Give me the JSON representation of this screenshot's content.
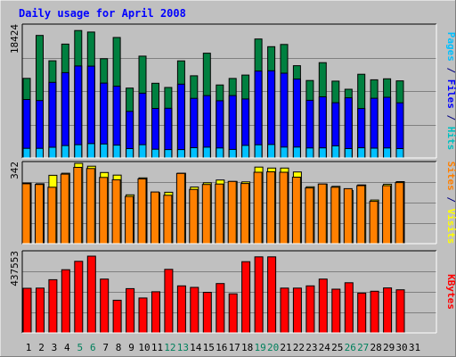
{
  "chart_data": {
    "type": "bar",
    "title": "Daily usage for April 2008",
    "categories": [
      "1",
      "2",
      "3",
      "4",
      "5",
      "6",
      "7",
      "8",
      "9",
      "10",
      "11",
      "12",
      "13",
      "14",
      "15",
      "16",
      "17",
      "18",
      "19",
      "20",
      "21",
      "22",
      "23",
      "24",
      "25",
      "26",
      "27",
      "28",
      "29",
      "30",
      "31"
    ],
    "weekend_days": [
      "5",
      "6",
      "12",
      "13",
      "19",
      "20",
      "26",
      "27"
    ],
    "panels": [
      {
        "name": "hits-files-pages",
        "ylim": [
          0,
          18424
        ],
        "max_label": "18424",
        "grid": true,
        "axis_label_parts": [
          {
            "text": "Pages",
            "color": "#00c0ff"
          },
          {
            "text": " / ",
            "color": "#000080"
          },
          {
            "text": "Files",
            "color": "#0000ff"
          },
          {
            "text": " / ",
            "color": "#000080"
          },
          {
            "text": "Hits",
            "color": "#00c0c0"
          }
        ],
        "series": [
          {
            "name": "Hits",
            "color": "#008040",
            "values": [
              11110,
              17090,
              13560,
              15880,
              17780,
              17570,
              13840,
              16800,
              9750,
              14210,
              10420,
              9830,
              13550,
              11460,
              14620,
              10180,
              11090,
              11560,
              16600,
              15520,
              15840,
              12870,
              10800,
              13300,
              10720,
              9590,
              11680,
              10910,
              11040,
              10760,
              null
            ]
          },
          {
            "name": "Files",
            "color": "#0000ff",
            "values": [
              8160,
              8000,
              10540,
              11900,
              12830,
              12810,
              10440,
              10010,
              6500,
              9040,
              6910,
              6940,
              10290,
              8320,
              8700,
              7980,
              8700,
              8230,
              12130,
              12160,
              11830,
              11010,
              8040,
              8530,
              7710,
              8390,
              6900,
              8330,
              8470,
              7690,
              null
            ]
          },
          {
            "name": "Pages",
            "color": "#00c0ff",
            "values": [
              1340,
              1350,
              1490,
              1730,
              1860,
              2010,
              1950,
              1790,
              1310,
              1860,
              1220,
              1170,
              1170,
              1430,
              1510,
              1390,
              1200,
              1760,
              1840,
              1880,
              1520,
              1520,
              1400,
              1410,
              1690,
              1310,
              1420,
              1370,
              1390,
              1310,
              null
            ]
          }
        ]
      },
      {
        "name": "visits-sites",
        "ylim": [
          0,
          342
        ],
        "max_label": "342",
        "grid": true,
        "axis_label_parts": [
          {
            "text": "Sites",
            "color": "#ff8000"
          },
          {
            "text": " / ",
            "color": "#000080"
          },
          {
            "text": "Visits",
            "color": "#ffff00"
          }
        ],
        "series": [
          {
            "name": "Visits",
            "color": "#ffff00",
            "values": [
              258,
              255,
              291,
              300,
              342,
              330,
              303,
              292,
              208,
              280,
              217,
              219,
              300,
              241,
              259,
              271,
              265,
              263,
              326,
              322,
              322,
              305,
              242,
              254,
              244,
              226,
              250,
              186,
              253,
              264,
              null
            ]
          },
          {
            "name": "Sites",
            "color": "#ff8000",
            "values": [
              255,
              252,
              240,
              296,
              325,
              320,
              282,
              272,
              201,
              276,
              220,
              206,
              299,
              231,
              252,
              254,
              265,
              256,
              304,
              306,
              304,
              283,
              237,
              254,
              240,
              234,
              247,
              180,
              247,
              260,
              null
            ]
          }
        ]
      },
      {
        "name": "kbytes",
        "ylim": [
          0,
          437553
        ],
        "max_label": "437553",
        "grid": true,
        "axis_label_parts": [
          {
            "text": "KBytes",
            "color": "#ff0000"
          }
        ],
        "series": [
          {
            "name": "KBytes",
            "color": "#ff0000",
            "values": [
              243000,
              244000,
              290000,
              344000,
              390000,
              418000,
              293000,
              178000,
              241000,
              190000,
              224000,
              346000,
              256000,
              248000,
              221000,
              269000,
              213000,
              388000,
              414000,
              414000,
              244000,
              244000,
              256000,
              293000,
              238000,
              273000,
              217000,
              227000,
              245000,
              235000,
              null
            ]
          }
        ]
      }
    ]
  }
}
